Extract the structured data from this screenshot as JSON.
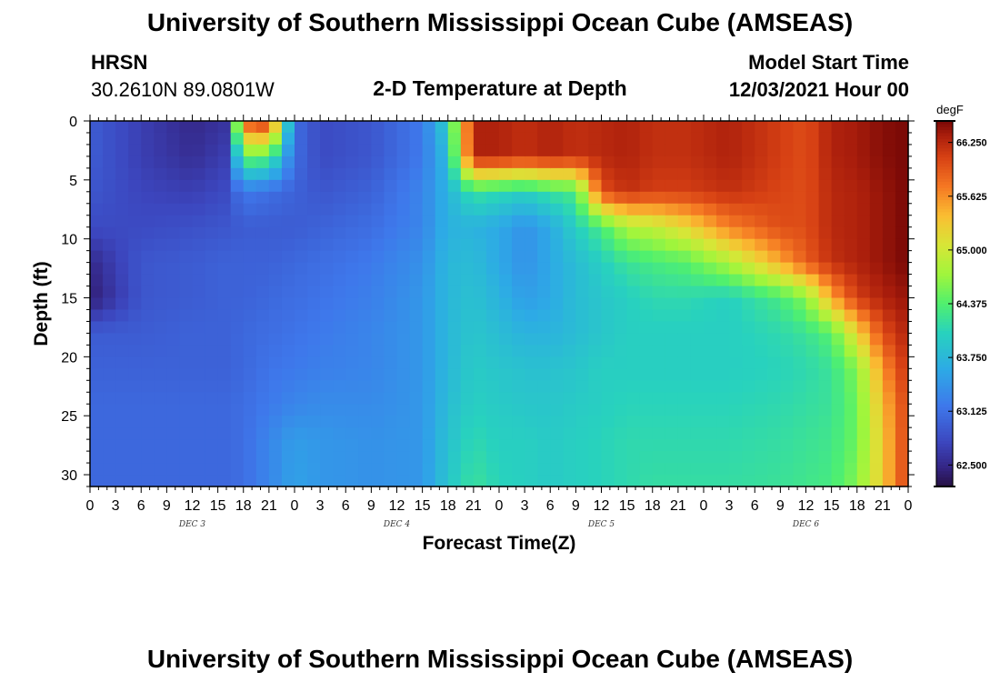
{
  "title": "University of Southern Mississippi Ocean Cube (AMSEAS)",
  "station": {
    "name": "HRSN",
    "coords": "30.2610N  89.0801W"
  },
  "model": {
    "label": "Model Start Time",
    "start": "12/03/2021 Hour 00"
  },
  "chart_data": {
    "type": "heatmap",
    "title": "2-D Temperature at Depth",
    "xlabel": "Forecast Time(Z)",
    "ylabel": "Depth (ft)",
    "ylim": [
      0,
      31
    ],
    "y_reversed": true,
    "x_range_hours": [
      0,
      96
    ],
    "x_tick_labels": [
      "0",
      "3",
      "6",
      "9",
      "12",
      "15",
      "18",
      "21",
      "0",
      "3",
      "6",
      "9",
      "12",
      "15",
      "18",
      "21",
      "0",
      "3",
      "6",
      "9",
      "12",
      "15",
      "18",
      "21",
      "0",
      "3",
      "6",
      "9",
      "12",
      "15",
      "18",
      "21",
      "0"
    ],
    "y_tick_labels": [
      "0",
      "5",
      "10",
      "15",
      "20",
      "25",
      "30"
    ],
    "y_ticks": [
      0,
      5,
      10,
      15,
      20,
      25,
      30
    ],
    "day_labels": [
      "DEC 3",
      "DEC 4",
      "DEC 5",
      "DEC 6"
    ],
    "colorbar": {
      "unit": "degF",
      "min": 62.25,
      "max": 66.5,
      "ticks": [
        62.5,
        63.125,
        63.75,
        64.375,
        65.0,
        65.625,
        66.25
      ],
      "tick_labels": [
        "62.500",
        "63.125",
        "63.750",
        "64.375",
        "65.000",
        "65.625",
        "66.250"
      ]
    },
    "depths_ft": [
      0,
      3,
      6,
      9,
      12,
      15,
      18,
      21,
      24,
      27,
      31
    ],
    "times_h": [
      0,
      6,
      12,
      16,
      18,
      21,
      24,
      27,
      33,
      39,
      42,
      45,
      48,
      51,
      54,
      57,
      60,
      63,
      66,
      70,
      75,
      81,
      84,
      87,
      90,
      93,
      96
    ],
    "temperature_degF": [
      [
        62.95,
        62.7,
        62.5,
        62.6,
        65.95,
        66.25,
        63.1,
        62.8,
        62.9,
        63.2,
        64.0,
        66.3,
        66.3,
        66.2,
        66.3,
        66.2,
        66.25,
        66.3,
        66.2,
        66.2,
        66.3,
        66.1,
        66.0,
        66.3,
        66.35,
        66.45,
        66.5
      ],
      [
        62.95,
        62.7,
        62.55,
        62.7,
        64.5,
        64.4,
        63.1,
        62.8,
        62.9,
        63.2,
        63.8,
        66.3,
        66.3,
        66.2,
        66.3,
        66.2,
        66.25,
        66.3,
        66.2,
        66.2,
        66.3,
        66.1,
        66.0,
        66.3,
        66.35,
        66.45,
        66.5
      ],
      [
        62.9,
        62.75,
        62.7,
        62.8,
        63.2,
        63.1,
        63.0,
        62.9,
        63.0,
        63.3,
        63.7,
        64.2,
        64.1,
        64.0,
        64.2,
        64.3,
        66.0,
        66.2,
        66.1,
        66.1,
        66.2,
        66.05,
        66.0,
        66.25,
        66.3,
        66.4,
        66.5
      ],
      [
        62.8,
        62.8,
        62.85,
        62.9,
        62.95,
        62.95,
        62.95,
        63.0,
        63.1,
        63.3,
        63.7,
        63.7,
        63.6,
        63.4,
        63.6,
        64.0,
        64.3,
        64.8,
        64.9,
        65.2,
        65.7,
        66.0,
        66.0,
        66.25,
        66.3,
        66.4,
        66.5
      ],
      [
        62.5,
        62.9,
        62.95,
        63.0,
        63.0,
        63.0,
        63.05,
        63.1,
        63.2,
        63.4,
        63.75,
        63.8,
        63.6,
        63.4,
        63.6,
        63.8,
        64.0,
        64.2,
        64.3,
        64.4,
        64.8,
        65.5,
        65.9,
        66.2,
        66.3,
        66.4,
        66.5
      ],
      [
        62.4,
        62.9,
        62.95,
        63.0,
        63.0,
        63.05,
        63.1,
        63.15,
        63.25,
        63.45,
        63.75,
        63.85,
        63.7,
        63.5,
        63.6,
        63.8,
        63.9,
        64.0,
        64.1,
        64.1,
        64.0,
        64.3,
        64.6,
        65.5,
        66.1,
        66.3,
        66.4
      ],
      [
        62.95,
        62.95,
        63.0,
        63.0,
        63.05,
        63.1,
        63.15,
        63.2,
        63.3,
        63.45,
        63.75,
        63.9,
        63.8,
        63.7,
        63.7,
        63.8,
        63.9,
        64.0,
        64.0,
        64.0,
        64.0,
        64.1,
        64.2,
        64.4,
        65.2,
        66.0,
        66.3
      ],
      [
        63.0,
        63.0,
        63.0,
        63.0,
        63.05,
        63.15,
        63.2,
        63.25,
        63.3,
        63.45,
        63.75,
        63.95,
        63.9,
        63.85,
        63.85,
        63.9,
        64.0,
        64.0,
        64.0,
        64.0,
        64.0,
        64.05,
        64.1,
        64.2,
        64.6,
        65.6,
        66.2
      ],
      [
        63.05,
        63.05,
        63.05,
        63.05,
        63.1,
        63.2,
        63.3,
        63.35,
        63.35,
        63.45,
        63.8,
        64.0,
        63.95,
        63.9,
        63.9,
        63.95,
        64.0,
        64.05,
        64.05,
        64.05,
        64.05,
        64.1,
        64.15,
        64.2,
        64.5,
        65.4,
        66.1
      ],
      [
        63.05,
        63.05,
        63.05,
        63.05,
        63.1,
        63.3,
        63.5,
        63.45,
        63.4,
        63.45,
        63.85,
        64.1,
        64.0,
        64.0,
        63.95,
        64.0,
        64.05,
        64.1,
        64.1,
        64.1,
        64.1,
        64.15,
        64.2,
        64.25,
        64.5,
        65.3,
        66.1
      ],
      [
        63.05,
        63.05,
        63.05,
        63.05,
        63.1,
        63.3,
        63.55,
        63.45,
        63.4,
        63.45,
        63.9,
        64.2,
        64.05,
        64.0,
        63.95,
        64.0,
        64.05,
        64.1,
        64.15,
        64.15,
        64.15,
        64.2,
        64.25,
        64.3,
        64.6,
        65.3,
        66.1
      ]
    ]
  }
}
